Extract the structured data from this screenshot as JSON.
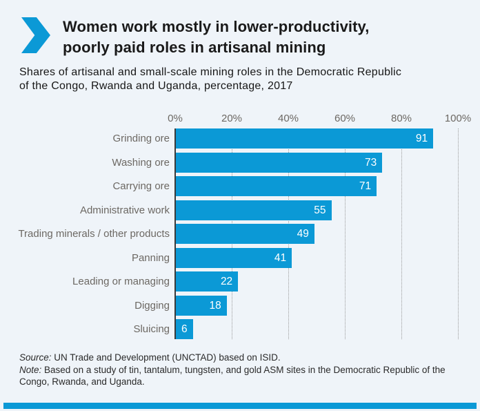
{
  "header": {
    "title_line1": "Women work mostly in lower-productivity,",
    "title_line2": "poorly paid roles in artisanal mining",
    "subtitle_line1": "Shares of artisanal and small-scale mining roles in the Democratic Republic",
    "subtitle_line2": "of the Congo, Rwanda and Uganda, percentage, 2017"
  },
  "chart_data": {
    "type": "bar",
    "orientation": "horizontal",
    "title": "Women work mostly in lower-productivity, poorly paid roles in artisanal mining",
    "subtitle": "Shares of artisanal and small-scale mining roles in the Democratic Republic of the Congo, Rwanda and Uganda, percentage, 2017",
    "categories": [
      "Grinding ore",
      "Washing ore",
      "Carrying ore",
      "Administrative work",
      "Trading minerals / other products",
      "Panning",
      "Leading or managing",
      "Digging",
      "Sluicing"
    ],
    "values": [
      91,
      73,
      71,
      55,
      49,
      41,
      22,
      18,
      6
    ],
    "unit": "%",
    "xlim": [
      0,
      100
    ],
    "tick_labels": [
      "0%",
      "20%",
      "40%",
      "60%",
      "80%",
      "100%"
    ],
    "tick_values": [
      0,
      20,
      40,
      60,
      80,
      100
    ],
    "grid": "vertical-dotted",
    "value_labels": "inside-end-white",
    "legend": "none"
  },
  "footer": {
    "source_label": "Source:",
    "source_text": " UN Trade and Development (UNCTAD) based on ISID.",
    "note_label": "Note:",
    "note_text": " Based on a study of tin, tantalum, tungsten, and gold ASM sites in the Democratic Republic of the Congo, Rwanda, and Uganda."
  },
  "colors": {
    "accent_blue": "#0b99d6",
    "background": "#eff4f9",
    "title_text": "#1a1a1a",
    "body_text": "#2a2a2a",
    "axis_label_text": "#6c6863",
    "value_label_text": "#ffffff",
    "axis_line": "#3a3a3a",
    "gridline": "#9a9a9a"
  }
}
